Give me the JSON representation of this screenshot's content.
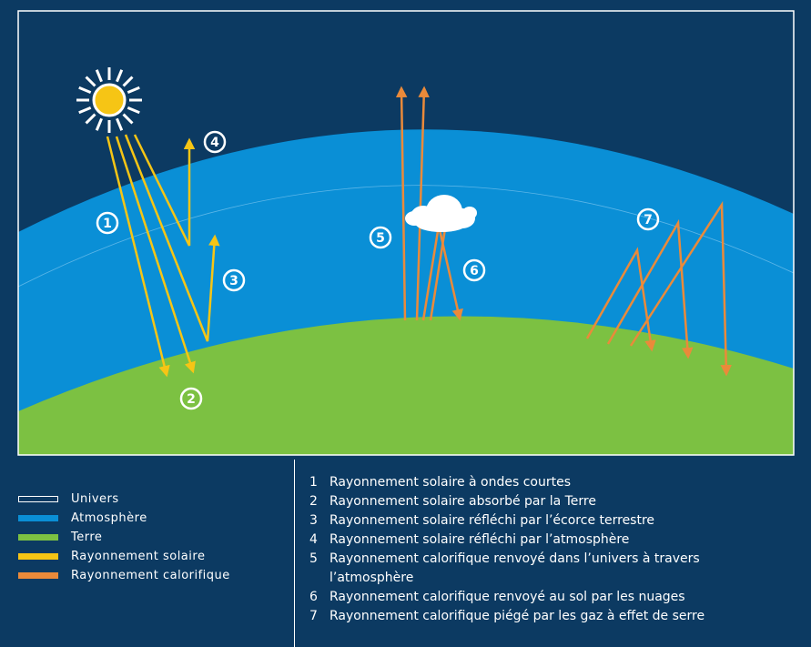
{
  "markers": [
    "1",
    "2",
    "3",
    "4",
    "5",
    "6",
    "7"
  ],
  "legend": [
    {
      "label": "Univers",
      "color": "#0c3a62"
    },
    {
      "label": "Atmosphère",
      "color": "#0a8fd6"
    },
    {
      "label": "Terre",
      "color": "#7cc142"
    },
    {
      "label": "Rayonnement solaire",
      "color": "#f6c515"
    },
    {
      "label": "Rayonnement calorifique",
      "color": "#ea8a3a"
    }
  ],
  "list": [
    {
      "number": "1",
      "lines": [
        "Rayonnement solaire à ondes courtes"
      ]
    },
    {
      "number": "2",
      "lines": [
        "Rayonnement solaire absorbé par la Terre"
      ]
    },
    {
      "number": "3",
      "lines": [
        "Rayonnement solaire réfléchi par l’écorce terrestre"
      ]
    },
    {
      "number": "4",
      "lines": [
        "Rayonnement solaire réfléchi par l’atmosphère"
      ]
    },
    {
      "number": "5",
      "lines": [
        "Rayonnement calorifique renvoyé dans l’univers à travers",
        "l’atmosphère"
      ]
    },
    {
      "number": "6",
      "lines": [
        "Rayonnement calorifique renvoyé au sol par les nuages"
      ]
    },
    {
      "number": "7",
      "lines": [
        "Rayonnement calorifique piégé par les gaz à effet de serre"
      ]
    }
  ]
}
